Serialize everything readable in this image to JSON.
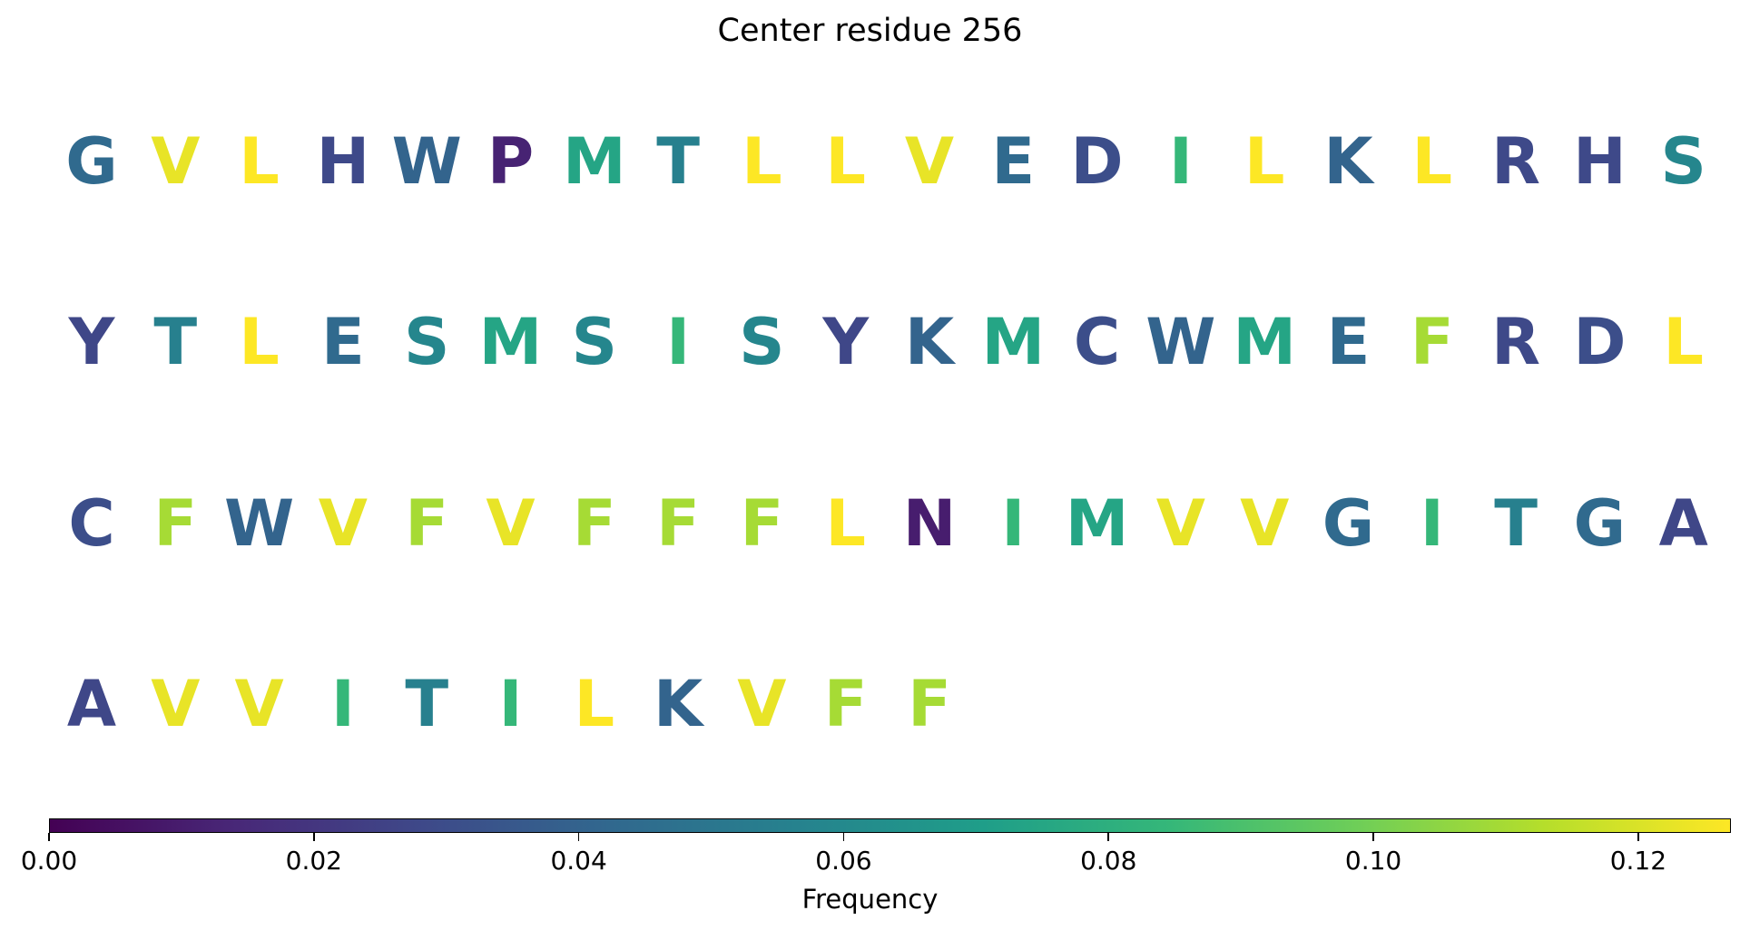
{
  "chart_data": {
    "type": "heatmap",
    "title": "Center residue 256",
    "colorbar": {
      "label": "Frequency",
      "colormap": "viridis",
      "range": [
        0,
        0.127
      ],
      "ticks": [
        "0.00",
        "0.02",
        "0.04",
        "0.06",
        "0.08",
        "0.10",
        "0.12"
      ]
    },
    "residues": [
      {
        "letter": "G",
        "freq": 0.043
      },
      {
        "letter": "V",
        "freq": 0.123
      },
      {
        "letter": "L",
        "freq": 0.127
      },
      {
        "letter": "H",
        "freq": 0.028
      },
      {
        "letter": "W",
        "freq": 0.04
      },
      {
        "letter": "P",
        "freq": 0.012
      },
      {
        "letter": "M",
        "freq": 0.075
      },
      {
        "letter": "T",
        "freq": 0.055
      },
      {
        "letter": "L",
        "freq": 0.127
      },
      {
        "letter": "L",
        "freq": 0.127
      },
      {
        "letter": "V",
        "freq": 0.123
      },
      {
        "letter": "E",
        "freq": 0.043
      },
      {
        "letter": "D",
        "freq": 0.03
      },
      {
        "letter": "I",
        "freq": 0.085
      },
      {
        "letter": "L",
        "freq": 0.127
      },
      {
        "letter": "K",
        "freq": 0.04
      },
      {
        "letter": "L",
        "freq": 0.127
      },
      {
        "letter": "R",
        "freq": 0.028
      },
      {
        "letter": "H",
        "freq": 0.028
      },
      {
        "letter": "S",
        "freq": 0.058
      },
      {
        "letter": "Y",
        "freq": 0.027
      },
      {
        "letter": "T",
        "freq": 0.055
      },
      {
        "letter": "L",
        "freq": 0.127
      },
      {
        "letter": "E",
        "freq": 0.043
      },
      {
        "letter": "S",
        "freq": 0.058
      },
      {
        "letter": "M",
        "freq": 0.075
      },
      {
        "letter": "S",
        "freq": 0.058
      },
      {
        "letter": "I",
        "freq": 0.085
      },
      {
        "letter": "S",
        "freq": 0.058
      },
      {
        "letter": "Y",
        "freq": 0.027
      },
      {
        "letter": "K",
        "freq": 0.04
      },
      {
        "letter": "M",
        "freq": 0.075
      },
      {
        "letter": "C",
        "freq": 0.03
      },
      {
        "letter": "W",
        "freq": 0.04
      },
      {
        "letter": "M",
        "freq": 0.075
      },
      {
        "letter": "E",
        "freq": 0.043
      },
      {
        "letter": "F",
        "freq": 0.11
      },
      {
        "letter": "R",
        "freq": 0.028
      },
      {
        "letter": "D",
        "freq": 0.03
      },
      {
        "letter": "L",
        "freq": 0.127
      },
      {
        "letter": "C",
        "freq": 0.03
      },
      {
        "letter": "F",
        "freq": 0.11
      },
      {
        "letter": "W",
        "freq": 0.04
      },
      {
        "letter": "V",
        "freq": 0.123
      },
      {
        "letter": "F",
        "freq": 0.11
      },
      {
        "letter": "V",
        "freq": 0.123
      },
      {
        "letter": "F",
        "freq": 0.11
      },
      {
        "letter": "F",
        "freq": 0.11
      },
      {
        "letter": "F",
        "freq": 0.11
      },
      {
        "letter": "L",
        "freq": 0.127
      },
      {
        "letter": "N",
        "freq": 0.01
      },
      {
        "letter": "I",
        "freq": 0.085
      },
      {
        "letter": "M",
        "freq": 0.075
      },
      {
        "letter": "V",
        "freq": 0.123
      },
      {
        "letter": "V",
        "freq": 0.123
      },
      {
        "letter": "G",
        "freq": 0.043
      },
      {
        "letter": "I",
        "freq": 0.085
      },
      {
        "letter": "T",
        "freq": 0.055
      },
      {
        "letter": "G",
        "freq": 0.043
      },
      {
        "letter": "A",
        "freq": 0.027
      },
      {
        "letter": "A",
        "freq": 0.027
      },
      {
        "letter": "V",
        "freq": 0.123
      },
      {
        "letter": "V",
        "freq": 0.123
      },
      {
        "letter": "I",
        "freq": 0.085
      },
      {
        "letter": "T",
        "freq": 0.055
      },
      {
        "letter": "I",
        "freq": 0.085
      },
      {
        "letter": "L",
        "freq": 0.127
      },
      {
        "letter": "K",
        "freq": 0.04
      },
      {
        "letter": "V",
        "freq": 0.123
      },
      {
        "letter": "F",
        "freq": 0.11
      },
      {
        "letter": "F",
        "freq": 0.11
      }
    ]
  }
}
